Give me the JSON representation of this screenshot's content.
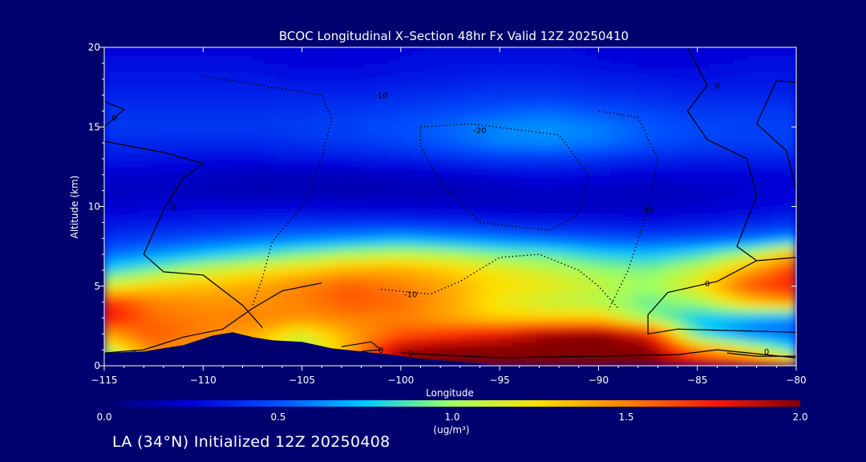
{
  "chart_data": {
    "type": "heatmap",
    "title": "BCOC Longitudinal X–Section 48hr  Fx Valid 12Z 20250410",
    "xlabel": "Longitude",
    "ylabel": "Altitude (km)",
    "xlim": [
      -115,
      -80
    ],
    "ylim": [
      0,
      20
    ],
    "x_ticks": [
      "-115",
      "-110",
      "-105",
      "-100",
      "-95",
      "-90",
      "-85",
      "-80"
    ],
    "y_ticks": [
      "0",
      "5",
      "10",
      "15",
      "20"
    ],
    "colorbar": {
      "range": [
        0.0,
        2.0
      ],
      "tick_labels": [
        "0.0",
        "0.5",
        "1.0",
        "1.5",
        "2.0"
      ],
      "unit": "(ug/m³)"
    },
    "longitudes": [
      -115,
      -112.5,
      -110,
      -107.5,
      -105,
      -102.5,
      -100,
      -97.5,
      -95,
      -92.5,
      -90,
      -87.5,
      -85,
      -82.5,
      -80
    ],
    "altitudes": [
      0,
      1,
      2,
      3,
      4,
      5,
      6,
      7,
      8,
      9,
      10,
      11,
      12,
      13,
      14,
      15,
      16,
      17,
      18,
      19,
      20
    ],
    "concentration": [
      [
        0.6,
        1.3,
        1.35,
        1.3,
        1.2,
        1.4,
        1.95,
        2.0,
        2.0,
        2.0,
        2.0,
        2.0,
        1.9,
        1.8,
        1.6
      ],
      [
        1.05,
        1.5,
        1.4,
        1.3,
        1.0,
        1.4,
        1.95,
        2.0,
        2.0,
        2.0,
        2.0,
        2.0,
        1.5,
        1.2,
        0.8
      ],
      [
        1.4,
        1.6,
        1.5,
        1.4,
        1.15,
        1.4,
        1.6,
        1.7,
        1.8,
        1.95,
        2.0,
        1.8,
        0.85,
        0.6,
        0.55
      ],
      [
        1.8,
        1.55,
        1.5,
        1.5,
        1.45,
        1.5,
        1.5,
        1.4,
        1.3,
        1.3,
        1.3,
        1.0,
        0.75,
        0.7,
        0.6
      ],
      [
        1.75,
        1.5,
        1.45,
        1.45,
        1.5,
        1.6,
        1.55,
        1.4,
        1.2,
        1.1,
        1.05,
        0.9,
        1.0,
        1.3,
        1.45
      ],
      [
        1.15,
        1.3,
        1.35,
        1.4,
        1.5,
        1.6,
        1.5,
        1.4,
        1.25,
        1.2,
        1.1,
        1.0,
        1.2,
        1.6,
        1.75
      ],
      [
        0.8,
        0.95,
        1.1,
        1.2,
        1.3,
        1.4,
        1.4,
        1.3,
        1.2,
        1.1,
        1.0,
        0.95,
        1.1,
        1.4,
        1.7
      ],
      [
        0.55,
        0.65,
        0.75,
        0.85,
        0.95,
        1.05,
        1.1,
        1.05,
        0.95,
        0.9,
        0.8,
        0.75,
        0.85,
        1.05,
        1.4
      ],
      [
        0.4,
        0.45,
        0.5,
        0.55,
        0.6,
        0.65,
        0.7,
        0.65,
        0.6,
        0.55,
        0.5,
        0.48,
        0.5,
        0.55,
        0.65
      ],
      [
        0.3,
        0.33,
        0.35,
        0.38,
        0.4,
        0.4,
        0.4,
        0.38,
        0.35,
        0.33,
        0.32,
        0.3,
        0.32,
        0.35,
        0.4
      ],
      [
        0.22,
        0.24,
        0.24,
        0.24,
        0.25,
        0.24,
        0.23,
        0.22,
        0.2,
        0.2,
        0.2,
        0.2,
        0.22,
        0.25,
        0.28
      ],
      [
        0.18,
        0.2,
        0.18,
        0.16,
        0.16,
        0.16,
        0.16,
        0.16,
        0.18,
        0.2,
        0.2,
        0.18,
        0.2,
        0.22,
        0.25
      ],
      [
        0.22,
        0.22,
        0.2,
        0.18,
        0.18,
        0.18,
        0.2,
        0.22,
        0.26,
        0.28,
        0.26,
        0.24,
        0.24,
        0.25,
        0.26
      ],
      [
        0.32,
        0.3,
        0.28,
        0.28,
        0.3,
        0.32,
        0.34,
        0.38,
        0.42,
        0.42,
        0.4,
        0.36,
        0.34,
        0.34,
        0.36
      ],
      [
        0.38,
        0.38,
        0.38,
        0.38,
        0.4,
        0.42,
        0.46,
        0.52,
        0.6,
        0.62,
        0.58,
        0.5,
        0.45,
        0.44,
        0.45
      ],
      [
        0.42,
        0.42,
        0.42,
        0.42,
        0.44,
        0.46,
        0.5,
        0.55,
        0.62,
        0.65,
        0.6,
        0.52,
        0.48,
        0.46,
        0.45
      ],
      [
        0.4,
        0.4,
        0.4,
        0.4,
        0.4,
        0.42,
        0.44,
        0.48,
        0.52,
        0.55,
        0.5,
        0.46,
        0.42,
        0.42,
        0.42
      ],
      [
        0.36,
        0.36,
        0.36,
        0.36,
        0.36,
        0.36,
        0.38,
        0.4,
        0.42,
        0.42,
        0.4,
        0.38,
        0.36,
        0.36,
        0.36
      ],
      [
        0.32,
        0.32,
        0.32,
        0.32,
        0.3,
        0.3,
        0.32,
        0.34,
        0.36,
        0.36,
        0.34,
        0.32,
        0.3,
        0.32,
        0.32
      ],
      [
        0.28,
        0.28,
        0.28,
        0.28,
        0.26,
        0.26,
        0.28,
        0.3,
        0.3,
        0.3,
        0.28,
        0.26,
        0.26,
        0.28,
        0.28
      ],
      [
        0.26,
        0.26,
        0.26,
        0.26,
        0.24,
        0.24,
        0.26,
        0.28,
        0.28,
        0.28,
        0.26,
        0.24,
        0.24,
        0.26,
        0.26
      ]
    ],
    "terrain": [
      [
        -115,
        0.8
      ],
      [
        -113,
        0.9
      ],
      [
        -111,
        1.3
      ],
      [
        -109.5,
        1.9
      ],
      [
        -108.5,
        2.1
      ],
      [
        -107.5,
        1.8
      ],
      [
        -106.5,
        1.6
      ],
      [
        -105,
        1.5
      ],
      [
        -103.5,
        1.1
      ],
      [
        -102,
        0.9
      ],
      [
        -100.5,
        0.7
      ],
      [
        -99,
        0.45
      ],
      [
        -97,
        0.25
      ],
      [
        -95,
        0.0
      ]
    ],
    "contours": [
      {
        "label": "0",
        "style": "solid",
        "label_at": [
          -113.5,
          0.8
        ],
        "points": [
          [
            -115,
            0.8
          ],
          [
            -113,
            1.0
          ],
          [
            -111,
            1.8
          ],
          [
            -109,
            2.3
          ],
          [
            -107.5,
            3.6
          ],
          [
            -106,
            4.7
          ],
          [
            -104,
            5.2
          ]
        ]
      },
      {
        "label": "0",
        "style": "solid",
        "label_at": [
          -111.5,
          10.0
        ],
        "points": [
          [
            -115,
            14.1
          ],
          [
            -112,
            13.4
          ],
          [
            -110,
            12.7
          ],
          [
            -111,
            11.8
          ],
          [
            -112,
            9.8
          ],
          [
            -113,
            7.0
          ],
          [
            -112,
            5.9
          ],
          [
            -110,
            5.7
          ],
          [
            -108,
            3.8
          ],
          [
            -107,
            2.4
          ]
        ]
      },
      {
        "label": "0",
        "style": "solid",
        "label_at": [
          -114.5,
          15.6
        ],
        "points": [
          [
            -115,
            16.6
          ],
          [
            -114,
            16.1
          ],
          [
            -115,
            15.0
          ]
        ]
      },
      {
        "label": "0",
        "style": "solid",
        "label_at": [
          -101,
          1.0
        ],
        "points": [
          [
            -103,
            1.2
          ],
          [
            -101.5,
            1.5
          ],
          [
            -101,
            1.0
          ],
          [
            -102,
            0.9
          ]
        ]
      },
      {
        "label": "0",
        "style": "solid",
        "label_at": [
          -99.5,
          0.8
        ],
        "points": [
          [
            -100,
            0.8
          ],
          [
            -95,
            0.5
          ],
          [
            -90,
            0.6
          ],
          [
            -86,
            0.7
          ],
          [
            -84,
            1.0
          ],
          [
            -80,
            0.5
          ]
        ]
      },
      {
        "label": "0",
        "style": "solid",
        "label_at": [
          -84.5,
          5.2
        ],
        "points": [
          [
            -80,
            6.8
          ],
          [
            -82,
            6.6
          ],
          [
            -84,
            5.3
          ],
          [
            -86.5,
            4.6
          ],
          [
            -87.5,
            3.2
          ],
          [
            -87.5,
            2.0
          ],
          [
            -86,
            2.3
          ],
          [
            -83,
            2.2
          ],
          [
            -80,
            2.1
          ]
        ]
      },
      {
        "label": "0",
        "style": "solid",
        "label_at": [
          -84,
          17.6
        ],
        "points": [
          [
            -85.5,
            20
          ],
          [
            -84.5,
            17.6
          ],
          [
            -85.5,
            16.0
          ],
          [
            -84.5,
            14.2
          ],
          [
            -82.5,
            13.0
          ],
          [
            -82,
            10.7
          ],
          [
            -83,
            7.5
          ],
          [
            -82,
            6.6
          ]
        ]
      },
      {
        "label": "0",
        "style": "solid",
        "label_at": [
          -81.5,
          0.9
        ],
        "points": [
          [
            -83.5,
            0.8
          ],
          [
            -82,
            0.6
          ],
          [
            -80,
            0.6
          ]
        ]
      },
      {
        "label": "",
        "style": "solid",
        "points": [
          [
            -80,
            17.8
          ],
          [
            -81,
            17.9
          ],
          [
            -82,
            15.2
          ],
          [
            -80.5,
            13.5
          ],
          [
            -80,
            11.0
          ]
        ]
      },
      {
        "label": "-10",
        "style": "dotted",
        "label_at": [
          -101,
          17.0
        ],
        "points": [
          [
            -110,
            18.2
          ],
          [
            -104,
            17.0
          ],
          [
            -103.5,
            15.5
          ],
          [
            -104,
            13.0
          ],
          [
            -105,
            10.0
          ],
          [
            -106.5,
            7.8
          ],
          [
            -107,
            5.5
          ],
          [
            -107.5,
            3.8
          ]
        ]
      },
      {
        "label": "-10",
        "style": "dotted",
        "label_at": [
          -99.5,
          4.5
        ],
        "points": [
          [
            -101,
            4.8
          ],
          [
            -98.5,
            4.5
          ],
          [
            -97,
            5.3
          ],
          [
            -95,
            6.8
          ],
          [
            -93,
            7.0
          ],
          [
            -91,
            6.0
          ],
          [
            -90,
            5.0
          ],
          [
            -89,
            3.6
          ]
        ]
      },
      {
        "label": "-10",
        "style": "dotted",
        "label_at": [
          -87.5,
          9.8
        ],
        "points": [
          [
            -90,
            16.0
          ],
          [
            -88,
            15.6
          ],
          [
            -87,
            13.0
          ],
          [
            -87.5,
            9.8
          ],
          [
            -88.5,
            6.0
          ],
          [
            -89.5,
            3.5
          ]
        ]
      },
      {
        "label": "-20",
        "style": "dotted",
        "label_at": [
          -96,
          14.8
        ],
        "points": [
          [
            -99,
            15.0
          ],
          [
            -96.5,
            15.2
          ],
          [
            -92,
            14.5
          ],
          [
            -90.5,
            12.0
          ],
          [
            -91,
            9.5
          ],
          [
            -92.5,
            8.5
          ],
          [
            -96,
            9.0
          ],
          [
            -98,
            11.5
          ],
          [
            -99,
            13.8
          ],
          [
            -99,
            15.0
          ]
        ]
      }
    ]
  },
  "footer": "LA (34°N) Initialized 12Z 20250408"
}
